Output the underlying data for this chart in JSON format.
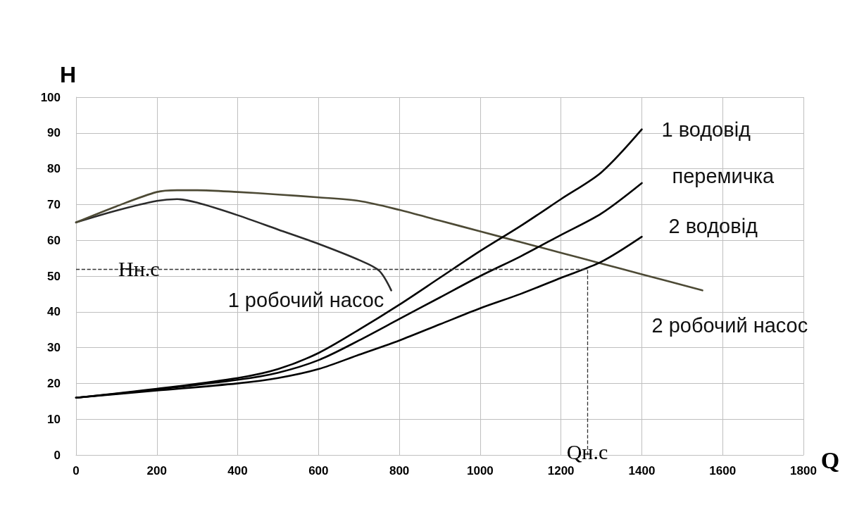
{
  "chart_data": {
    "type": "line",
    "xlabel": "Q",
    "ylabel": "H",
    "xlim": [
      0,
      1800
    ],
    "xticks": [
      0,
      200,
      400,
      600,
      800,
      1000,
      1200,
      1400,
      1600,
      1800
    ],
    "ylim": [
      0,
      100
    ],
    "yticks": [
      0,
      10,
      20,
      30,
      40,
      50,
      60,
      70,
      80,
      90,
      100
    ],
    "grid": true,
    "legend": false,
    "marker": "none",
    "line_style": "solid",
    "series": [
      {
        "name": "1 робочий насос",
        "color": "#2b2b2b",
        "x": [
          0,
          100,
          200,
          250,
          300,
          400,
          500,
          600,
          700,
          750,
          780
        ],
        "values": [
          65,
          68.3,
          71,
          71.5,
          70.5,
          67,
          63,
          59,
          54.5,
          51.5,
          46
        ]
      },
      {
        "name": "2 робочий насос",
        "color": "#4d4a35",
        "x": [
          0,
          100,
          200,
          250,
          300,
          400,
          500,
          600,
          700,
          800,
          900,
          1000,
          1100,
          1200,
          1300,
          1400,
          1550
        ],
        "values": [
          65,
          69.5,
          73.5,
          74,
          74,
          73.5,
          72.8,
          72,
          71,
          68.5,
          65.5,
          62.5,
          59.5,
          56.5,
          53.5,
          50.5,
          46
        ]
      },
      {
        "name": "1 водовід",
        "color": "#000000",
        "x": [
          0,
          200,
          400,
          500,
          600,
          700,
          800,
          900,
          1000,
          1100,
          1200,
          1300,
          1400
        ],
        "values": [
          16,
          18.5,
          21.5,
          24,
          28.5,
          35,
          42,
          49.5,
          57,
          64,
          71.5,
          79,
          91
        ]
      },
      {
        "name": "перемичка",
        "color": "#000000",
        "x": [
          0,
          200,
          400,
          500,
          600,
          700,
          800,
          900,
          1000,
          1100,
          1200,
          1300,
          1400
        ],
        "values": [
          16,
          18.3,
          21,
          23,
          26.5,
          32,
          38,
          44,
          50,
          55.5,
          61.5,
          67.5,
          76
        ]
      },
      {
        "name": "2 водовід",
        "color": "#000000",
        "x": [
          0,
          200,
          400,
          500,
          600,
          700,
          800,
          900,
          1000,
          1100,
          1200,
          1300,
          1400
        ],
        "values": [
          16,
          18,
          20,
          21.5,
          24,
          28,
          32,
          36.5,
          41,
          45,
          49.5,
          54,
          61
        ]
      }
    ],
    "ref_lines": [
      {
        "axis": "y",
        "value": 52,
        "label": "Hн.с",
        "color": "#333333",
        "line_style": "dashed"
      },
      {
        "axis": "x",
        "value": 1265,
        "label": "Qн.с",
        "color": "#333333",
        "line_style": "dashed"
      }
    ]
  }
}
